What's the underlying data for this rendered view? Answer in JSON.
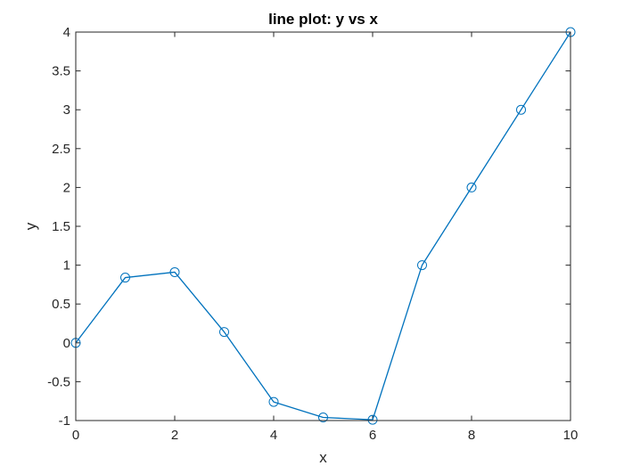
{
  "chart_data": {
    "type": "line",
    "title": "line plot: y vs x",
    "xlabel": "x",
    "ylabel": "y",
    "xlim": [
      0,
      10
    ],
    "ylim": [
      -1,
      4
    ],
    "xticks": [
      0,
      2,
      4,
      6,
      8,
      10
    ],
    "xtick_labels": [
      "0",
      "2",
      "4",
      "6",
      "8",
      "10"
    ],
    "yticks": [
      -1,
      -0.5,
      0,
      0.5,
      1,
      1.5,
      2,
      2.5,
      3,
      3.5,
      4
    ],
    "ytick_labels": [
      "-1",
      "-0.5",
      "0",
      "0.5",
      "1",
      "1.5",
      "2",
      "2.5",
      "3",
      "3.5",
      "4"
    ],
    "grid": false,
    "legend": "none",
    "marker": "circle",
    "series": [
      {
        "x": [
          0,
          1,
          2,
          3,
          4,
          5,
          6,
          7,
          8,
          9,
          10
        ],
        "y": [
          0,
          0.84,
          0.91,
          0.14,
          -0.76,
          -0.96,
          -0.99,
          1,
          2,
          3,
          4
        ],
        "color": "#0072bd"
      }
    ]
  }
}
